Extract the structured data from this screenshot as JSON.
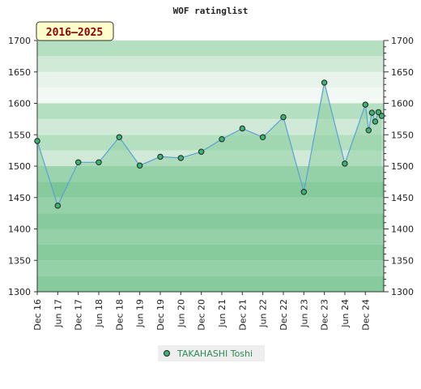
{
  "chart_data": {
    "type": "area",
    "title": "WOF ratinglist",
    "period_label": "2016–2025",
    "ylim": [
      1300,
      1700
    ],
    "yticks": [
      1300,
      1350,
      1400,
      1450,
      1500,
      1550,
      1600,
      1650,
      1700
    ],
    "xtick_labels": [
      "Dec 16",
      "Jun 17",
      "Dec 17",
      "Jun 18",
      "Dec 18",
      "Jun 19",
      "Dec 19",
      "Jun 20",
      "Dec 20",
      "Jun 21",
      "Dec 21",
      "Jun 22",
      "Dec 22",
      "Jun 23",
      "Dec 23",
      "Jun 24",
      "Dec 24"
    ],
    "grid": true,
    "legend_position": "bottom-center",
    "colors": {
      "line": "#5aa0d8",
      "marker_fill": "#3cb371",
      "band_dark": "#7cc596",
      "band_light": "#9ad3ad",
      "top_bands": [
        "#b4dfc1",
        "#d0ead7",
        "#e8f4eb",
        "#f2f8f3"
      ],
      "area": "#8fcfa3",
      "legend_text": "#2e8b57",
      "badge_fill": "#ffffcc",
      "badge_text": "#8b0000"
    },
    "series": [
      {
        "name": "TAKAHASHI Toshi",
        "x": [
          0,
          1,
          2,
          3,
          4,
          5,
          6,
          7,
          8,
          9,
          10,
          11,
          12,
          13,
          14,
          15,
          16,
          16.16,
          16.32,
          16.48,
          16.64,
          16.8
        ],
        "values": [
          1540,
          1437,
          1506,
          1506,
          1546,
          1501,
          1515,
          1513,
          1523,
          1543,
          1560,
          1546,
          1578,
          1459,
          1633,
          1504,
          1598,
          1557,
          1585,
          1571,
          1586,
          1580
        ]
      }
    ]
  }
}
